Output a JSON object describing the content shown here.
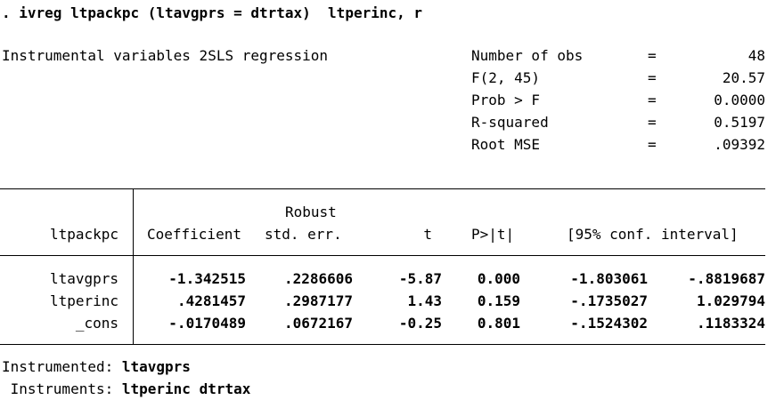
{
  "command": ". ivreg ltpackpc (ltavgprs = dtrtax)  ltperinc, r",
  "title": "Instrumental variables 2SLS regression",
  "stats": [
    {
      "label": "Number of obs",
      "eq": "=",
      "value": "48"
    },
    {
      "label": "F(2, 45)",
      "eq": "=",
      "value": "20.57"
    },
    {
      "label": "Prob > F",
      "eq": "=",
      "value": "0.0000"
    },
    {
      "label": "R-squared",
      "eq": "=",
      "value": "0.5197"
    },
    {
      "label": "Root MSE",
      "eq": "=",
      "value": ".09392"
    }
  ],
  "table": {
    "depvar": "ltpackpc",
    "robust_label": "Robust",
    "headers": [
      "Coefficient",
      "std. err.",
      "t",
      "P>|t|",
      "[95% conf. interval]"
    ],
    "rows": [
      {
        "name": "ltavgprs",
        "coef": "-1.342515",
        "se": ".2286606",
        "t": "-5.87",
        "p": "0.000",
        "lo": "-1.803061",
        "hi": "-.8819687"
      },
      {
        "name": "ltperinc",
        "coef": ".4281457",
        "se": ".2987177",
        "t": "1.43",
        "p": "0.159",
        "lo": "-.1735027",
        "hi": "1.029794"
      },
      {
        "name": "_cons",
        "coef": "-.0170489",
        "se": ".0672167",
        "t": "-0.25",
        "p": "0.801",
        "lo": "-.1524302",
        "hi": ".1183324"
      }
    ]
  },
  "footer": {
    "instrumented_label": "Instrumented:",
    "instrumented_value": "ltavgprs",
    "instruments_label": " Instruments:",
    "instruments_value": "ltperinc dtrtax"
  }
}
